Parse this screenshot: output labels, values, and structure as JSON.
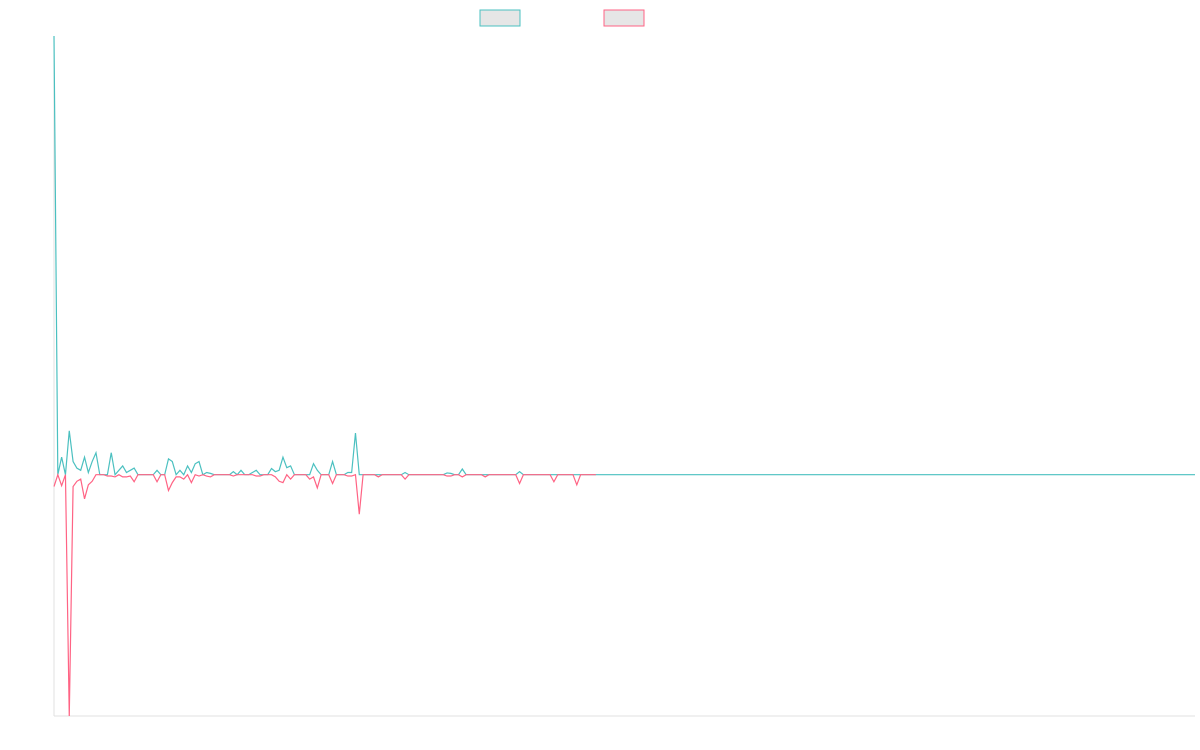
{
  "chart_data": {
    "type": "line",
    "ylim": [
      -55,
      100
    ],
    "grid": false,
    "series": [
      {
        "color": "#4bc0c0",
        "values": [
          100,
          0,
          4,
          0,
          10,
          3,
          1.5,
          1,
          4,
          0.5,
          3,
          5,
          0,
          0,
          0,
          5,
          0,
          1,
          2,
          0.5,
          1,
          1.5,
          0,
          0,
          0,
          0,
          0,
          1,
          0,
          0,
          3.6,
          3,
          0,
          1,
          0,
          2,
          0.5,
          2.5,
          3,
          0,
          0.5,
          0.3,
          0,
          0,
          0,
          0,
          0,
          0.7,
          0,
          1,
          0,
          0,
          0.5,
          1,
          0,
          0,
          0,
          1.4,
          0.7,
          1,
          4,
          1.6,
          2,
          0,
          0,
          0,
          0,
          0,
          2.5,
          1,
          0,
          0,
          0,
          3,
          0,
          0,
          0,
          0.5,
          0.5,
          9.5,
          0,
          0,
          0,
          0,
          0,
          0,
          0,
          0,
          0,
          0,
          0,
          0,
          0.5,
          0,
          0,
          0,
          0,
          0,
          0,
          0,
          0,
          0,
          0,
          0.4,
          0.3,
          0,
          0,
          1.3,
          0,
          0,
          0,
          0,
          0,
          0,
          0,
          0,
          0,
          0,
          0,
          0,
          0,
          0,
          0.7,
          0,
          0,
          0,
          0,
          0,
          0,
          0,
          0,
          0,
          0,
          0,
          0,
          0,
          0,
          0,
          0,
          0,
          0,
          0,
          0,
          0,
          0,
          0,
          0,
          0,
          0,
          0,
          0,
          0,
          0,
          0,
          0,
          0,
          0,
          0,
          0,
          0,
          0,
          0,
          0,
          0,
          0,
          0,
          0,
          0,
          0,
          0,
          0,
          0,
          0,
          0,
          0,
          0,
          0,
          0,
          0,
          0,
          0,
          0,
          0,
          0,
          0,
          0,
          0,
          0,
          0,
          0,
          0,
          0,
          0,
          0,
          0,
          0,
          0,
          0,
          0,
          0,
          0,
          0,
          0,
          0,
          0,
          0,
          0,
          0,
          0,
          0,
          0,
          0,
          0,
          0,
          0,
          0,
          0,
          0,
          0,
          0,
          0,
          0,
          0,
          0,
          0,
          0,
          0,
          0,
          0,
          0,
          0,
          0,
          0,
          0,
          0,
          0,
          0,
          0,
          0,
          0,
          0,
          0,
          0,
          0,
          0,
          0,
          0,
          0,
          0,
          0,
          0,
          0,
          0,
          0,
          0,
          0,
          0,
          0,
          0,
          0,
          0,
          0,
          0,
          0,
          0,
          0,
          0,
          0,
          0,
          0,
          0,
          0,
          0,
          0,
          0,
          0,
          0,
          0,
          0,
          0,
          0,
          0,
          0,
          0,
          0,
          0,
          0,
          0,
          0,
          0,
          0,
          0,
          0,
          0,
          0,
          0,
          0,
          0,
          0,
          0
        ]
      },
      {
        "color": "#ff6384",
        "values": [
          -2.7,
          0,
          -2.5,
          0,
          -55,
          -2.7,
          -1.5,
          -1,
          -5.5,
          -2.3,
          -1.5,
          0,
          0,
          0,
          -0.3,
          -0.3,
          -0.5,
          0,
          -0.5,
          -0.5,
          -0.3,
          -1.6,
          0,
          0,
          0,
          0,
          0,
          -1.6,
          0,
          0,
          -3.6,
          -1.8,
          -0.5,
          -0.5,
          -1,
          0,
          -1.8,
          0,
          -0.3,
          0,
          -0.3,
          -0.5,
          0,
          0,
          0,
          0,
          0,
          -0.3,
          0,
          0,
          0,
          0,
          0,
          -0.3,
          -0.3,
          0,
          0,
          0,
          -0.5,
          -1.5,
          -1.8,
          0,
          -1,
          0,
          0,
          0,
          0,
          -1,
          -0.5,
          -3,
          0,
          0,
          0,
          -2,
          0,
          0,
          0,
          -0.3,
          -0.3,
          0,
          -9,
          0,
          0,
          0,
          0,
          -0.5,
          0,
          0,
          0,
          0,
          0,
          0,
          -1,
          0,
          0,
          0,
          0,
          0,
          0,
          0,
          0,
          0,
          0,
          -0.3,
          -0.3,
          0,
          0,
          -0.5,
          0,
          0,
          0,
          0,
          0,
          -0.5,
          0,
          0,
          0,
          0,
          0,
          0,
          0,
          0,
          -2,
          0,
          0,
          0,
          0,
          0,
          0,
          0,
          0,
          -1.6,
          0,
          0,
          0,
          0,
          0,
          -2.3,
          0,
          0,
          0,
          0,
          0,
          null,
          null,
          null,
          null,
          null,
          null,
          null,
          null,
          null,
          null,
          null,
          null,
          null,
          null,
          null,
          null,
          null,
          null,
          null,
          null,
          null,
          null,
          null,
          null,
          null,
          null,
          null,
          null,
          null,
          null,
          null,
          null,
          null,
          null,
          null,
          null,
          null,
          null,
          null,
          null,
          null,
          null,
          null,
          null,
          null,
          null,
          null,
          null,
          null,
          null,
          null,
          null,
          null,
          null,
          null,
          null,
          null,
          null,
          null,
          null,
          null,
          null,
          null,
          null,
          null,
          null,
          null,
          null,
          null,
          null,
          null,
          null,
          null,
          null,
          null,
          null,
          null,
          null,
          null,
          null,
          null,
          null,
          null,
          null,
          null,
          null,
          null,
          null,
          null,
          null,
          null,
          null,
          null,
          null,
          null,
          null,
          null,
          null,
          null,
          null,
          null,
          null,
          null,
          null,
          null,
          null,
          null,
          null,
          null,
          null,
          null,
          null,
          null,
          null,
          null,
          null,
          null,
          null,
          null,
          null,
          null,
          null,
          null,
          null,
          null,
          null,
          null,
          null,
          null,
          null,
          null,
          null,
          null,
          null,
          null,
          null,
          null,
          null,
          null,
          null,
          null,
          null,
          null,
          null,
          null,
          null,
          null,
          null,
          null,
          null,
          null,
          null,
          null,
          null,
          null,
          null,
          null
        ]
      }
    ]
  }
}
